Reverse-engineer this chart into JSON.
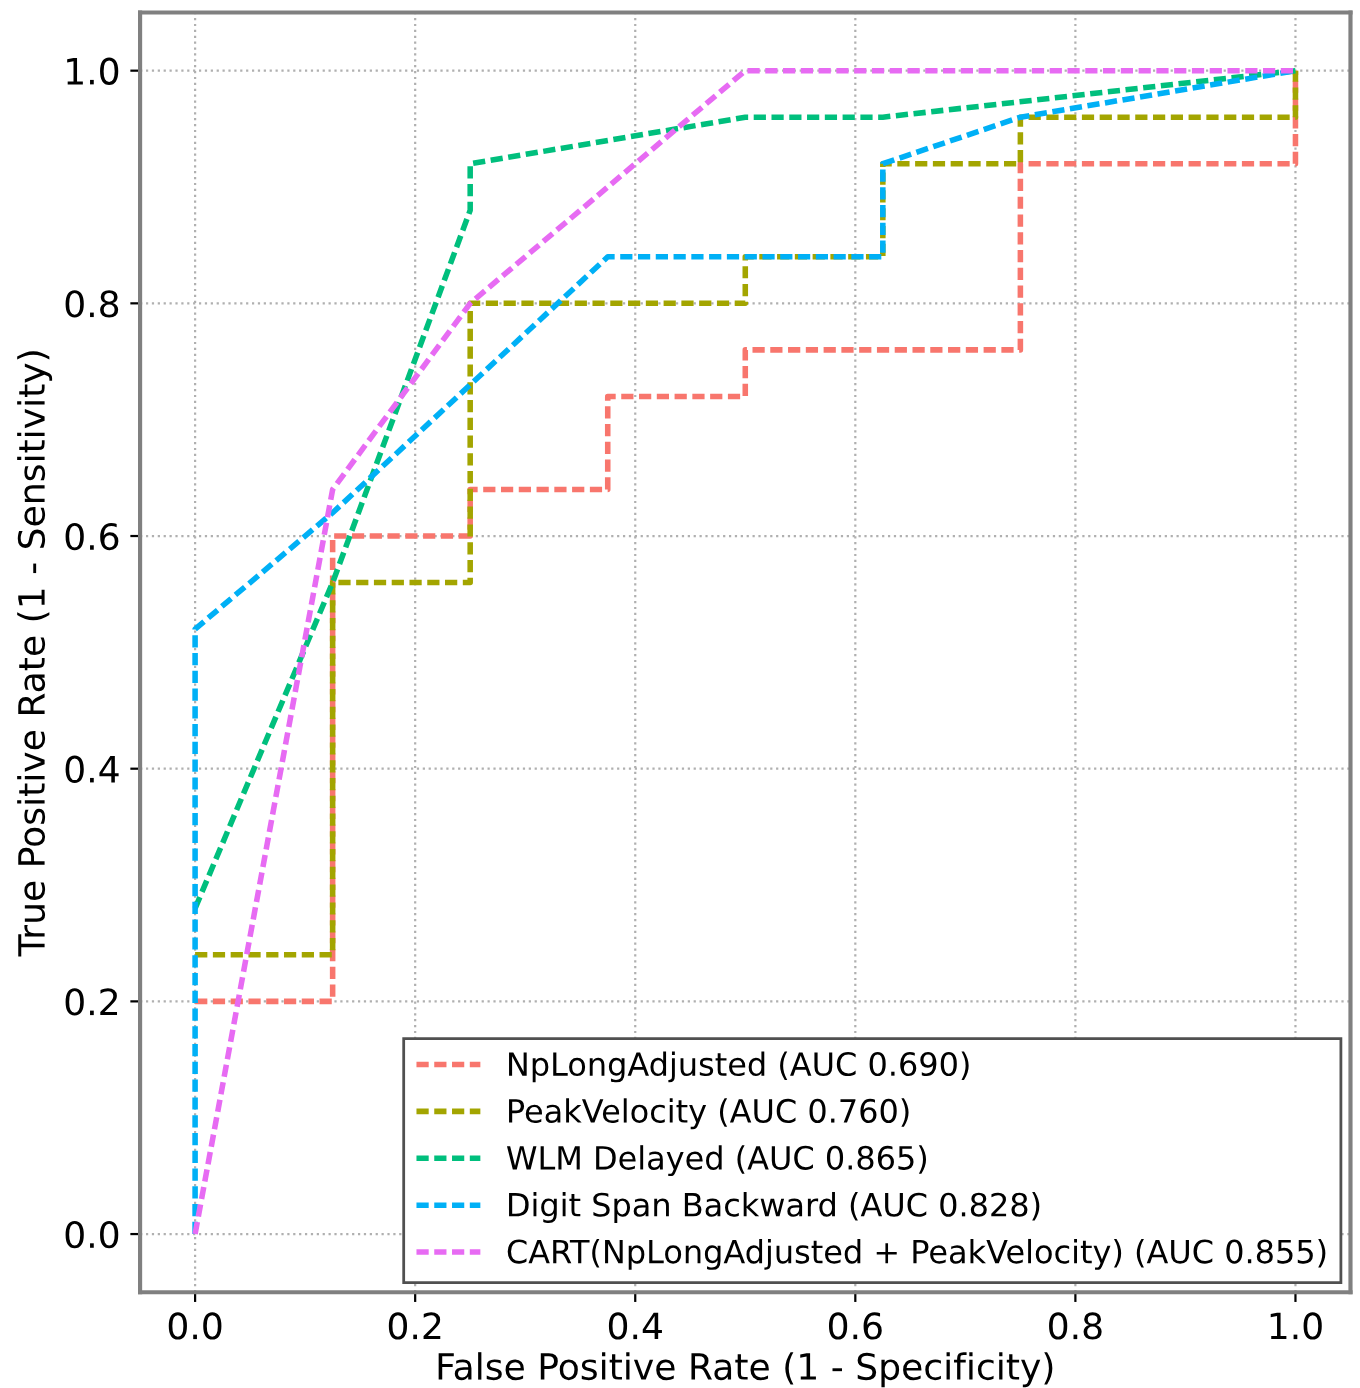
{
  "chart_data": {
    "type": "line",
    "xlabel": "False Positive Rate (1 - Specificity)",
    "ylabel": "True Positive Rate (1 - Sensitivity)",
    "xlim": [
      -0.05,
      1.05
    ],
    "ylim": [
      -0.05,
      1.05
    ],
    "xticks": [
      {
        "value": 0,
        "label": "0.0"
      },
      0.2,
      0.4,
      0.6,
      0.8,
      {
        "value": 1,
        "label": "1.0"
      }
    ],
    "yticks": [
      {
        "value": 0,
        "label": "0.0"
      },
      0.2,
      0.4,
      0.6,
      0.8,
      {
        "value": 1,
        "label": "1.0"
      }
    ],
    "grid": true,
    "legend": "bottom right",
    "line_style": "dashed",
    "marker": "none",
    "series": [
      {
        "name": "NpLongAdjusted (AUC 0.690)",
        "color": "#f8766d",
        "x": [
          0,
          0.125,
          0.125,
          0.25,
          0.25,
          0.375,
          0.375,
          0.5,
          0.5,
          0.75,
          0.75,
          1,
          1
        ],
        "values": [
          0.2,
          0.2,
          0.6,
          0.6,
          0.64,
          0.64,
          0.72,
          0.72,
          0.76,
          0.76,
          0.92,
          0.92,
          1
        ]
      },
      {
        "name": "PeakVelocity (AUC 0.760)",
        "color": "#a3a500",
        "x": [
          0,
          0.125,
          0.125,
          0.25,
          0.25,
          0.5,
          0.5,
          0.625,
          0.625,
          0.75,
          0.75,
          1,
          1
        ],
        "values": [
          0.24,
          0.24,
          0.56,
          0.56,
          0.8,
          0.8,
          0.84,
          0.84,
          0.92,
          0.92,
          0.96,
          0.96,
          1
        ]
      },
      {
        "name": "WLM Delayed (AUC 0.865)",
        "color": "#00bf7d",
        "x": [
          0,
          0.125,
          0.25,
          0.25,
          0.5,
          0.625,
          1
        ],
        "values": [
          0.28,
          0.56,
          0.88,
          0.92,
          0.96,
          0.96,
          1
        ]
      },
      {
        "name": "Digit Span Backward (AUC 0.828)",
        "color": "#00b0f6",
        "x": [
          0,
          0,
          0,
          0.125,
          0.375,
          0.625,
          0.625,
          0.75,
          1
        ],
        "values": [
          0,
          0.04,
          0.52,
          0.62,
          0.84,
          0.84,
          0.92,
          0.96,
          1
        ]
      },
      {
        "name": "CART(NpLongAdjusted + PeakVelocity) (AUC 0.855)",
        "color": "#e76bf3",
        "x": [
          0,
          0.125,
          0.25,
          0.5,
          1
        ],
        "values": [
          0,
          0.64,
          0.8,
          1,
          1
        ]
      }
    ]
  }
}
